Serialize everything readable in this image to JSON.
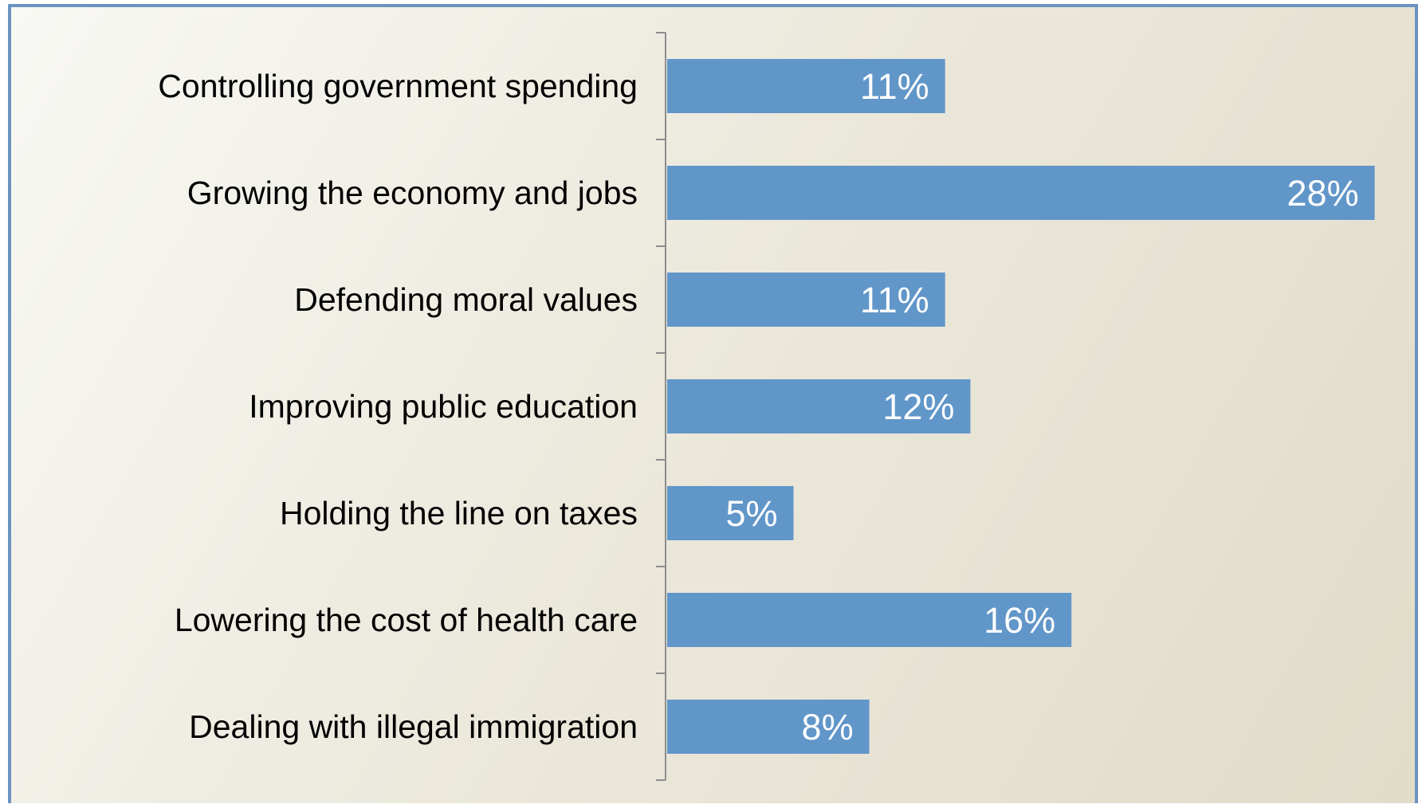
{
  "chart_data": {
    "type": "bar",
    "orientation": "horizontal",
    "categories": [
      "Controlling government spending",
      "Growing the economy and jobs",
      "Defending moral values",
      "Improving public education",
      "Holding the line on taxes",
      "Lowering the cost of health care",
      "Dealing with illegal immigration"
    ],
    "values": [
      11,
      28,
      11,
      12,
      5,
      16,
      8
    ],
    "value_labels": [
      "11%",
      "28%",
      "11%",
      "12%",
      "5%",
      "16%",
      "8%"
    ],
    "unit": "%",
    "xlim": [
      0,
      28
    ],
    "grid": false,
    "legend": "none",
    "colors": {
      "bar": "#6196c9",
      "axis": "#8c8c8c",
      "frame_border": "#6b93c0",
      "label_text": "#000000",
      "value_text": "#ffffff"
    }
  }
}
